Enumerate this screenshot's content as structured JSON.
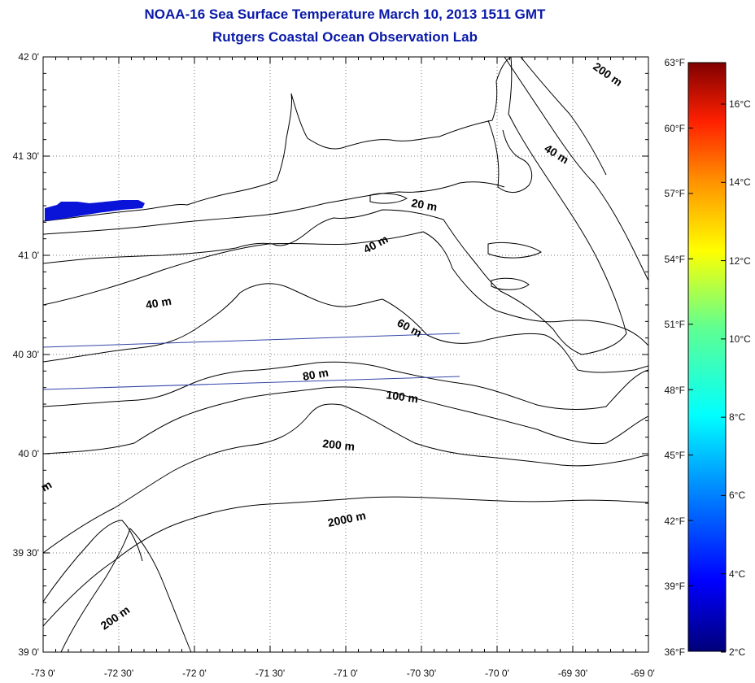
{
  "title": "NOAA-16 Sea Surface Temperature March 10, 2013 1511 GMT",
  "subtitle": "Rutgers Coastal Ocean Observation Lab",
  "lon_ticks": [
    "-73 0'",
    "-72 30'",
    "-72 0'",
    "-71 30'",
    "-71 0'",
    "-70 30'",
    "-70 0'",
    "-69 30'",
    "-69 0'"
  ],
  "lat_ticks": [
    "42 0'",
    "41 30'",
    "41 0'",
    "40 30'",
    "40 0'",
    "39 30'",
    "39 0'"
  ],
  "contour_labels": [
    "200 m",
    "40 m",
    "20 m",
    "40 m",
    "40 m",
    "60 m",
    "80 m",
    "100 m",
    "200 m",
    "2000 m",
    "200 m",
    "m"
  ],
  "colorbar": {
    "fahrenheit": [
      "63°F",
      "60°F",
      "57°F",
      "54°F",
      "51°F",
      "48°F",
      "45°F",
      "42°F",
      "39°F",
      "36°F"
    ],
    "celsius": [
      "16°C",
      "14°C",
      "12°C",
      "10°C",
      "8°C",
      "6°C",
      "4°C",
      "2°C"
    ]
  },
  "colors": {
    "title": "#0a1aa8",
    "sst_patch": "#0a14d8",
    "track": "#3346a8",
    "coast": "#000000"
  }
}
